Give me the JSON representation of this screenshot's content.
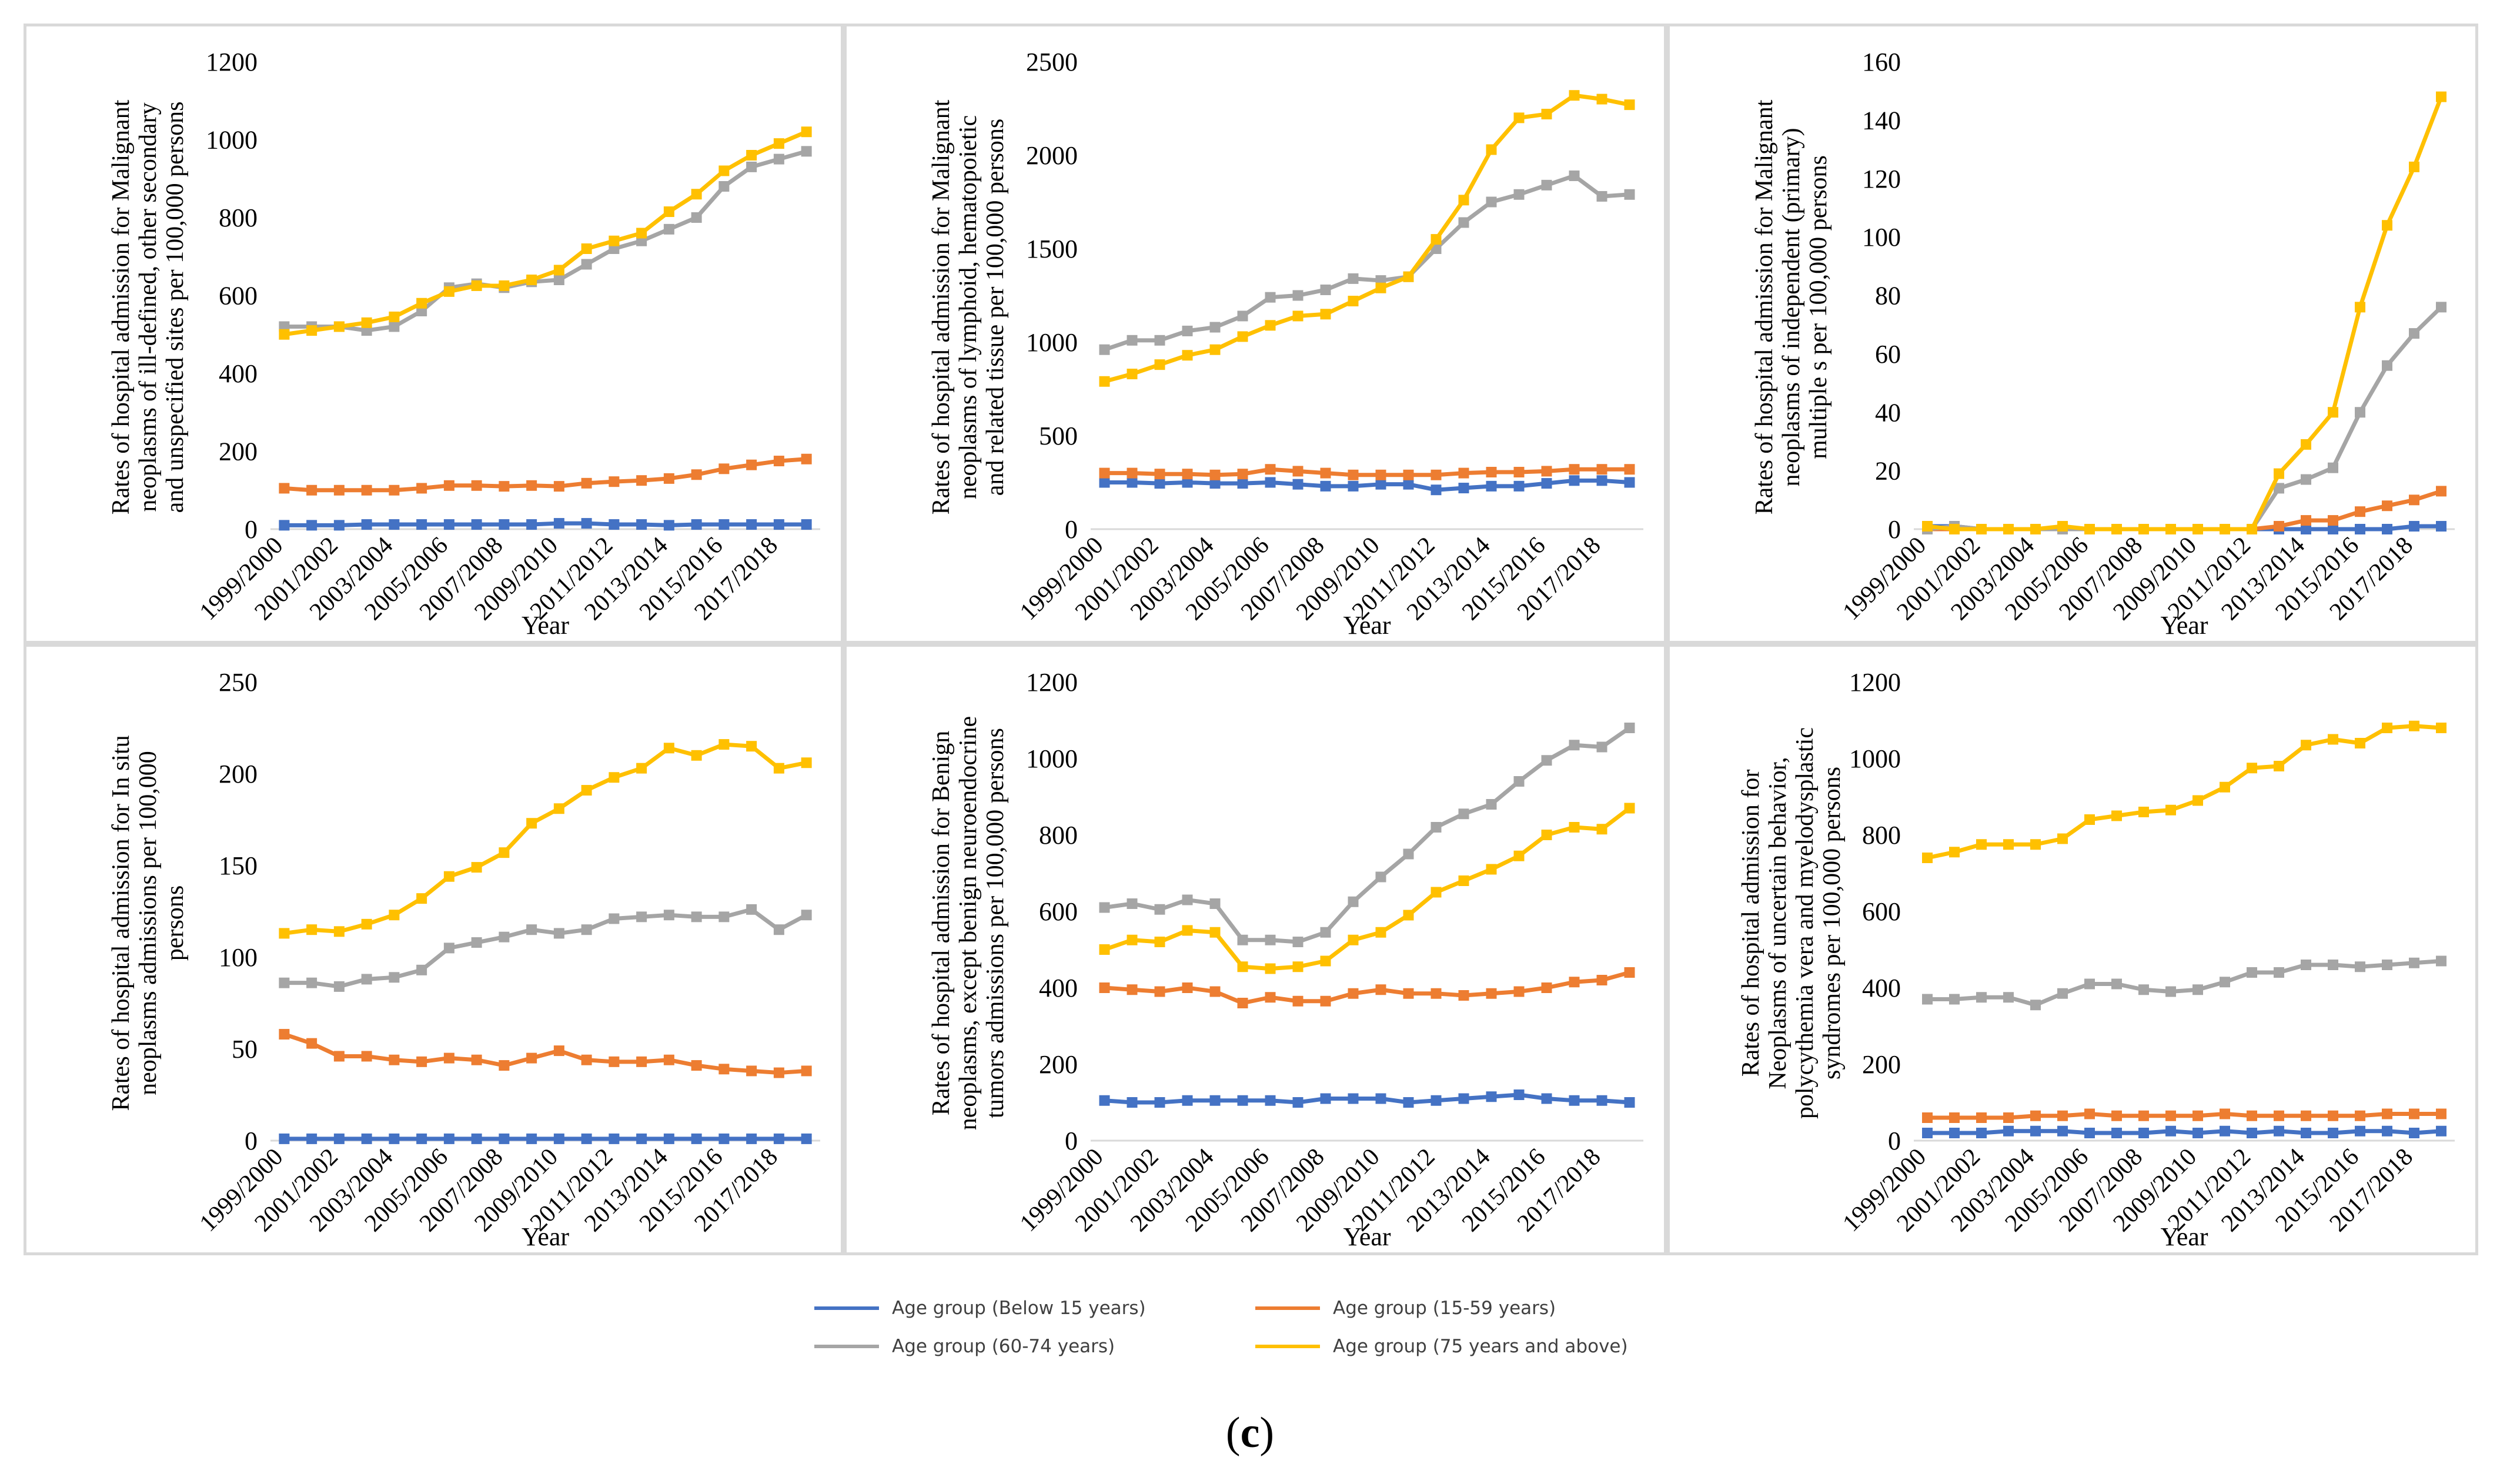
{
  "colors": {
    "below15": "#4472c4",
    "age15_59": "#ed7d31",
    "age60_74": "#a5a5a5",
    "age75plus": "#ffc000",
    "axis": "#000000"
  },
  "legend": {
    "below15": "Age group (Below 15 years)",
    "age15_59": "Age group (15-59 years)",
    "age60_74": "Age group (60-74 years)",
    "age75plus": "Age group (75 years and above)"
  },
  "caption": {
    "open": "(",
    "letter": "c",
    "close": ")"
  },
  "chart_data": [
    {
      "type": "line",
      "ylabel": "Rates of hospital admission for Malignant neoplasms of ill-defined, other secondary and unspecified sites per 100,000 persons",
      "ylabel_lines": [
        "Rates of hospital admission for Malignant",
        "neoplasms of ill-defined, other secondary",
        "and unspecified sites per 100,000 persons"
      ],
      "xlabel": "Year",
      "ylim": [
        0,
        1200
      ],
      "yticks": [
        0,
        200,
        400,
        600,
        800,
        1000,
        1200
      ],
      "x_tick_labels": [
        "1999/2000",
        "2001/2002",
        "2003/2004",
        "2005/2006",
        "2007/2008",
        "2009/2010",
        "2011/2012",
        "2013/2014",
        "2015/2016",
        "2017/2018"
      ],
      "categories": [
        "1999/2000",
        "2000/2001",
        "2001/2002",
        "2002/2003",
        "2003/2004",
        "2004/2005",
        "2005/2006",
        "2006/2007",
        "2007/2008",
        "2008/2009",
        "2009/2010",
        "2010/2011",
        "2011/2012",
        "2012/2013",
        "2013/2014",
        "2014/2015",
        "2015/2016",
        "2016/2017",
        "2017/2018",
        "2018/2019"
      ],
      "series": [
        {
          "key": "below15",
          "values": [
            10,
            10,
            10,
            12,
            12,
            12,
            12,
            12,
            12,
            12,
            15,
            15,
            12,
            12,
            10,
            12,
            12,
            12,
            12,
            12
          ]
        },
        {
          "key": "age15_59",
          "values": [
            105,
            100,
            100,
            100,
            100,
            105,
            112,
            112,
            110,
            112,
            110,
            118,
            122,
            125,
            130,
            140,
            155,
            165,
            175,
            180
          ]
        },
        {
          "key": "age60_74",
          "values": [
            520,
            520,
            520,
            510,
            520,
            560,
            620,
            630,
            620,
            635,
            640,
            680,
            720,
            740,
            770,
            800,
            880,
            930,
            950,
            970
          ]
        },
        {
          "key": "age75plus",
          "values": [
            500,
            510,
            520,
            530,
            545,
            580,
            610,
            625,
            625,
            640,
            665,
            720,
            740,
            760,
            815,
            860,
            920,
            960,
            990,
            1020
          ]
        }
      ]
    },
    {
      "type": "line",
      "ylabel": "Rates of hospital admission for Malignant neoplasms of lymphoid, hematopoietic and related tissue per 100,000 persons",
      "ylabel_lines": [
        "Rates of hospital admission for Malignant",
        "neoplasms of lymphoid, hematopoietic",
        "and related tissue per 100,000 persons"
      ],
      "xlabel": "Year",
      "ylim": [
        0,
        2500
      ],
      "yticks": [
        0,
        500,
        1000,
        1500,
        2000,
        2500
      ],
      "x_tick_labels": [
        "1999/2000",
        "2001/2002",
        "2003/2004",
        "2005/2006",
        "2007/2008",
        "2009/2010",
        "2011/2012",
        "2013/2014",
        "2015/2016",
        "2017/2018"
      ],
      "categories": [
        "1999/2000",
        "2000/2001",
        "2001/2002",
        "2002/2003",
        "2003/2004",
        "2004/2005",
        "2005/2006",
        "2006/2007",
        "2007/2008",
        "2008/2009",
        "2009/2010",
        "2010/2011",
        "2011/2012",
        "2012/2013",
        "2013/2014",
        "2014/2015",
        "2015/2016",
        "2016/2017",
        "2017/2018",
        "2018/2019"
      ],
      "series": [
        {
          "key": "below15",
          "values": [
            250,
            250,
            245,
            250,
            245,
            245,
            250,
            240,
            230,
            230,
            240,
            240,
            210,
            220,
            230,
            230,
            245,
            260,
            260,
            250
          ]
        },
        {
          "key": "age15_59",
          "values": [
            300,
            300,
            295,
            295,
            290,
            295,
            320,
            310,
            300,
            290,
            290,
            290,
            290,
            300,
            305,
            305,
            310,
            320,
            320,
            320
          ]
        },
        {
          "key": "age60_74",
          "values": [
            960,
            1010,
            1010,
            1060,
            1080,
            1140,
            1240,
            1250,
            1280,
            1340,
            1330,
            1350,
            1500,
            1640,
            1750,
            1790,
            1840,
            1890,
            1780,
            1790
          ]
        },
        {
          "key": "age75plus",
          "values": [
            790,
            830,
            880,
            930,
            960,
            1030,
            1090,
            1140,
            1150,
            1220,
            1290,
            1350,
            1550,
            1760,
            2030,
            2200,
            2220,
            2320,
            2300,
            2270
          ]
        }
      ]
    },
    {
      "type": "line",
      "ylabel": "Rates of hospital admission for Malignant neoplasms of independent (primary) multiple s per 100,000 persons",
      "ylabel_lines": [
        "Rates of hospital admission for Malignant",
        "neoplasms of independent (primary)",
        "multiple s per 100,000 persons"
      ],
      "xlabel": "Year",
      "ylim": [
        0,
        160
      ],
      "yticks": [
        0,
        20,
        40,
        60,
        80,
        100,
        120,
        140,
        160
      ],
      "x_tick_labels": [
        "1999/2000",
        "2001/2002",
        "2003/2004",
        "2005/2006",
        "2007/2008",
        "2009/2010",
        "2011/2012",
        "2013/2014",
        "2015/2016",
        "2017/2018"
      ],
      "categories": [
        "1999/2000",
        "2000/2001",
        "2001/2002",
        "2002/2003",
        "2003/2004",
        "2004/2005",
        "2005/2006",
        "2006/2007",
        "2007/2008",
        "2008/2009",
        "2009/2010",
        "2010/2011",
        "2011/2012",
        "2012/2013",
        "2013/2014",
        "2014/2015",
        "2015/2016",
        "2016/2017",
        "2017/2018",
        "2018/2019"
      ],
      "series": [
        {
          "key": "below15",
          "values": [
            1,
            1,
            0,
            0,
            0,
            0,
            0,
            0,
            0,
            0,
            0,
            0,
            0,
            0,
            0,
            0,
            0,
            0,
            1,
            1
          ]
        },
        {
          "key": "age15_59",
          "values": [
            0,
            0,
            0,
            0,
            0,
            0,
            0,
            0,
            0,
            0,
            0,
            0,
            0,
            1,
            3,
            3,
            6,
            8,
            10,
            13
          ]
        },
        {
          "key": "age60_74",
          "values": [
            0,
            1,
            0,
            0,
            0,
            0,
            0,
            0,
            0,
            0,
            0,
            0,
            0,
            14,
            17,
            21,
            40,
            56,
            67,
            76
          ]
        },
        {
          "key": "age75plus",
          "values": [
            1,
            0,
            0,
            0,
            0,
            1,
            0,
            0,
            0,
            0,
            0,
            0,
            0,
            19,
            29,
            40,
            76,
            104,
            124,
            148
          ]
        }
      ]
    },
    {
      "type": "line",
      "ylabel": "Rates of hospital admission for  In situ neoplasms admissions per 100,000 persons",
      "ylabel_lines": [
        "Rates of hospital admission for  In situ",
        "neoplasms admissions per 100,000",
        "persons"
      ],
      "xlabel": "Year",
      "ylim": [
        0,
        250
      ],
      "yticks": [
        0,
        50,
        100,
        150,
        200,
        250
      ],
      "x_tick_labels": [
        "1999/2000",
        "2001/2002",
        "2003/2004",
        "2005/2006",
        "2007/2008",
        "2009/2010",
        "2011/2012",
        "2013/2014",
        "2015/2016",
        "2017/2018"
      ],
      "categories": [
        "1999/2000",
        "2000/2001",
        "2001/2002",
        "2002/2003",
        "2003/2004",
        "2004/2005",
        "2005/2006",
        "2006/2007",
        "2007/2008",
        "2008/2009",
        "2009/2010",
        "2010/2011",
        "2011/2012",
        "2012/2013",
        "2013/2014",
        "2014/2015",
        "2015/2016",
        "2016/2017",
        "2017/2018",
        "2018/2019"
      ],
      "series": [
        {
          "key": "below15",
          "values": [
            1,
            1,
            1,
            1,
            1,
            1,
            1,
            1,
            1,
            1,
            1,
            1,
            1,
            1,
            1,
            1,
            1,
            1,
            1,
            1
          ]
        },
        {
          "key": "age15_59",
          "values": [
            58,
            53,
            46,
            46,
            44,
            43,
            45,
            44,
            41,
            45,
            49,
            44,
            43,
            43,
            44,
            41,
            39,
            38,
            37,
            38
          ]
        },
        {
          "key": "age60_74",
          "values": [
            86,
            86,
            84,
            88,
            89,
            93,
            105,
            108,
            111,
            115,
            113,
            115,
            121,
            122,
            123,
            122,
            122,
            126,
            115,
            123
          ]
        },
        {
          "key": "age75plus",
          "values": [
            113,
            115,
            114,
            118,
            123,
            132,
            144,
            149,
            157,
            173,
            181,
            191,
            198,
            203,
            214,
            210,
            216,
            215,
            203,
            206
          ]
        }
      ]
    },
    {
      "type": "line",
      "ylabel": "Rates of hospital admission for Benign neoplasms, except benign neuroendocrine tumors admissions per 100,000 persons",
      "ylabel_lines": [
        "Rates of hospital admission for Benign",
        "neoplasms, except benign neuroendocrine",
        "tumors admissions per 100,000 persons"
      ],
      "xlabel": "Year",
      "ylim": [
        0,
        1200
      ],
      "yticks": [
        0,
        200,
        400,
        600,
        800,
        1000,
        1200
      ],
      "x_tick_labels": [
        "1999/2000",
        "2001/2002",
        "2003/2004",
        "2005/2006",
        "2007/2008",
        "2009/2010",
        "2011/2012",
        "2013/2014",
        "2015/2016",
        "2017/2018"
      ],
      "categories": [
        "1999/2000",
        "2000/2001",
        "2001/2002",
        "2002/2003",
        "2003/2004",
        "2004/2005",
        "2005/2006",
        "2006/2007",
        "2007/2008",
        "2008/2009",
        "2009/2010",
        "2010/2011",
        "2011/2012",
        "2012/2013",
        "2013/2014",
        "2014/2015",
        "2015/2016",
        "2016/2017",
        "2017/2018",
        "2018/2019"
      ],
      "series": [
        {
          "key": "below15",
          "values": [
            105,
            100,
            100,
            105,
            105,
            105,
            105,
            100,
            110,
            110,
            110,
            100,
            105,
            110,
            115,
            120,
            110,
            105,
            105,
            100
          ]
        },
        {
          "key": "age15_59",
          "values": [
            400,
            395,
            390,
            400,
            390,
            360,
            375,
            365,
            365,
            385,
            395,
            385,
            385,
            380,
            385,
            390,
            400,
            415,
            420,
            440
          ]
        },
        {
          "key": "age60_74",
          "values": [
            610,
            620,
            605,
            630,
            620,
            525,
            525,
            520,
            545,
            625,
            690,
            750,
            820,
            855,
            880,
            940,
            995,
            1035,
            1030,
            1080
          ]
        },
        {
          "key": "age75plus",
          "values": [
            500,
            525,
            520,
            550,
            545,
            455,
            450,
            455,
            470,
            525,
            545,
            590,
            650,
            680,
            710,
            745,
            800,
            820,
            815,
            870
          ]
        }
      ]
    },
    {
      "type": "line",
      "ylabel": "Rates of hospital admission for Neoplasms of uncertain behavior, polycythemia vera and myelodysplastic syndromes per 100,000 persons",
      "ylabel_lines": [
        "Rates of hospital admission for",
        "Neoplasms of uncertain behavior,",
        "polycythemia vera and myelodysplastic",
        "syndromes per 100,000 persons"
      ],
      "xlabel": "Year",
      "ylim": [
        0,
        1200
      ],
      "yticks": [
        0,
        200,
        400,
        600,
        800,
        1000,
        1200
      ],
      "x_tick_labels": [
        "1999/2000",
        "2001/2002",
        "2003/2004",
        "2005/2006",
        "2007/2008",
        "2009/2010",
        "2011/2012",
        "2013/2014",
        "2015/2016",
        "2017/2018"
      ],
      "categories": [
        "1999/2000",
        "2000/2001",
        "2001/2002",
        "2002/2003",
        "2003/2004",
        "2004/2005",
        "2005/2006",
        "2006/2007",
        "2007/2008",
        "2008/2009",
        "2009/2010",
        "2010/2011",
        "2011/2012",
        "2012/2013",
        "2013/2014",
        "2014/2015",
        "2015/2016",
        "2016/2017",
        "2017/2018",
        "2018/2019"
      ],
      "series": [
        {
          "key": "below15",
          "values": [
            20,
            20,
            20,
            25,
            25,
            25,
            20,
            20,
            20,
            25,
            20,
            25,
            20,
            25,
            20,
            20,
            25,
            25,
            20,
            25
          ]
        },
        {
          "key": "age15_59",
          "values": [
            60,
            60,
            60,
            60,
            65,
            65,
            70,
            65,
            65,
            65,
            65,
            70,
            65,
            65,
            65,
            65,
            65,
            70,
            70,
            70
          ]
        },
        {
          "key": "age60_74",
          "values": [
            370,
            370,
            375,
            375,
            355,
            385,
            410,
            410,
            395,
            390,
            395,
            415,
            440,
            440,
            460,
            460,
            455,
            460,
            465,
            470
          ]
        },
        {
          "key": "age75plus",
          "values": [
            740,
            755,
            775,
            775,
            775,
            790,
            840,
            850,
            860,
            865,
            890,
            925,
            975,
            980,
            1035,
            1050,
            1040,
            1080,
            1085,
            1080
          ]
        }
      ]
    }
  ]
}
